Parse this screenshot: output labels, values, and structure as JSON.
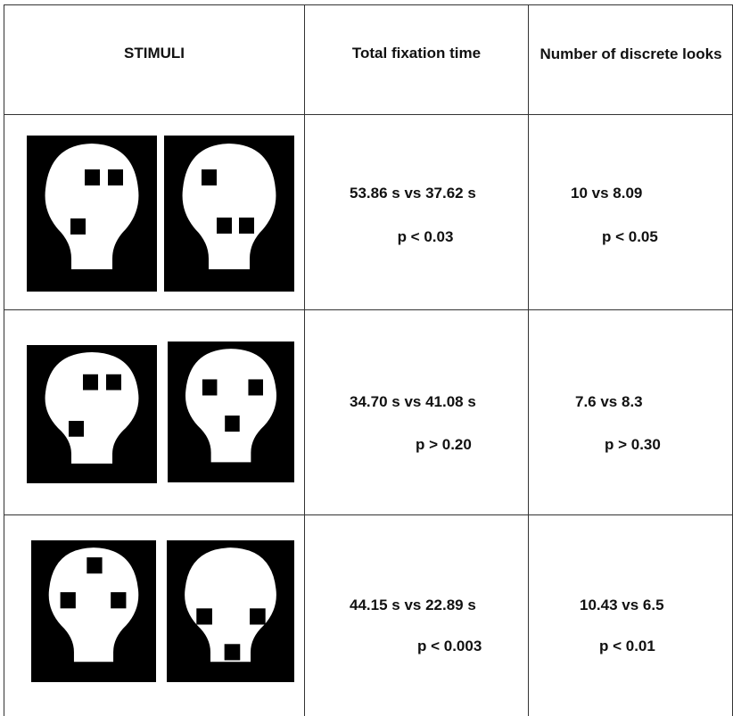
{
  "table": {
    "header": [
      "STIMULI",
      "Total fixation time",
      "Number of discrete looks"
    ],
    "rows": [
      {
        "fixation": [
          "53.86 s vs 37.62 s",
          "p < 0.03"
        ],
        "looks": [
          "10 vs 8.09",
          "p < 0.05"
        ]
      },
      {
        "fixation": [
          "34.70 s vs 41.08 s",
          "p > 0.20"
        ],
        "looks": [
          "7.6 vs 8.3",
          "p > 0.30"
        ]
      },
      {
        "fixation": [
          "44.15 s vs 22.89 s",
          "p < 0.003"
        ],
        "looks": [
          "10.43 vs 6.5",
          "p < 0.01"
        ]
      }
    ]
  }
}
